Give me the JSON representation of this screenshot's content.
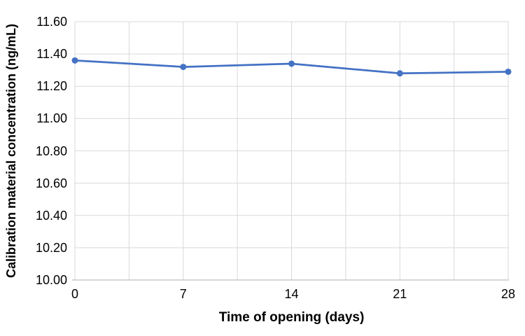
{
  "chart_data": {
    "type": "line",
    "title": "",
    "xlabel": "Time of opening (days)",
    "ylabel": "Calibration material concentration (ng/mL)",
    "x": [
      0,
      7,
      14,
      21,
      28
    ],
    "x_tick_labels": [
      "0",
      "7",
      "14",
      "21",
      "28"
    ],
    "series": [
      {
        "name": "Calibration material concentration",
        "values": [
          11.36,
          11.32,
          11.34,
          11.28,
          11.29
        ]
      }
    ],
    "xlim": [
      0,
      28
    ],
    "ylim": [
      10.0,
      11.6
    ],
    "y_major_unit": 0.2,
    "x_minor_unit": 3.5,
    "y_tick_labels": [
      "10.00",
      "10.20",
      "10.40",
      "10.60",
      "10.80",
      "11.00",
      "11.20",
      "11.40",
      "11.60"
    ],
    "grid": "on",
    "legend": "none",
    "marker": "circle",
    "marker_size": 4.5,
    "line_width": 2.75,
    "colors": {
      "series": "#4472C4",
      "gridline": "#D9D9D9",
      "axis_line": "#BFBFBF",
      "text": "#000000",
      "background": "#FFFFFF"
    }
  }
}
